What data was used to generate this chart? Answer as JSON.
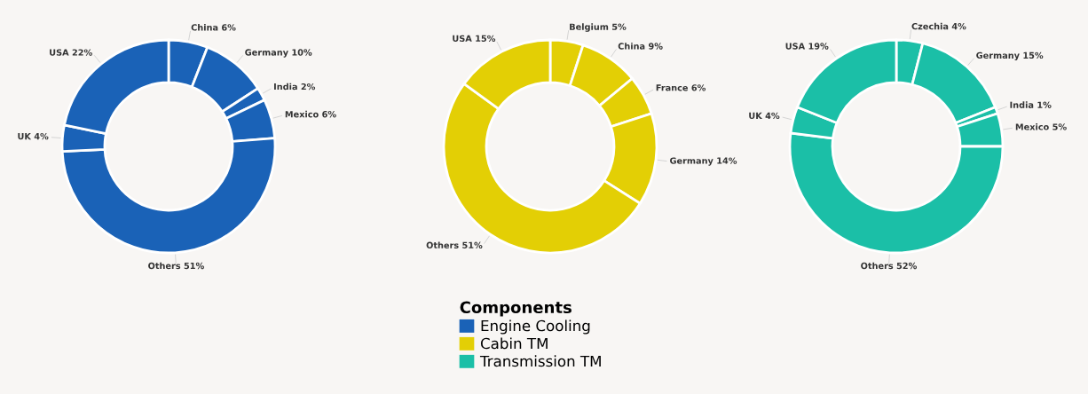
{
  "chart_data": [
    {
      "type": "donut",
      "categories": [
        "China 6%",
        "Germany 10%",
        "India 2%",
        "Mexico 6%",
        "Others 51%",
        "UK 4%",
        "USA 22%"
      ],
      "legend": "bottom",
      "legend_title": "Components",
      "series": [
        {
          "name": "Engine Cooling",
          "color": "#1a62b7",
          "values": [
            6,
            10,
            2,
            6,
            51,
            4,
            22
          ]
        }
      ]
    },
    {
      "type": "donut",
      "categories": [
        "Belgium 5%",
        "China 9%",
        "France 6%",
        "Germany 14%",
        "Others 51%",
        "USA 15%"
      ],
      "legend": "bottom",
      "series": [
        {
          "name": "Cabin TM",
          "color": "#e3cf05",
          "values": [
            5,
            9,
            6,
            14,
            51,
            15
          ]
        }
      ]
    },
    {
      "type": "donut",
      "categories": [
        "Czechia 4%",
        "Germany 15%",
        "India 1%",
        "Mexico 5%",
        "Others 52%",
        "UK 4%",
        "USA 19%"
      ],
      "legend": "bottom",
      "series": [
        {
          "name": "Transmission TM",
          "color": "#1bbfa7",
          "values": [
            4,
            15,
            1,
            5,
            52,
            4,
            19
          ]
        }
      ]
    }
  ]
}
